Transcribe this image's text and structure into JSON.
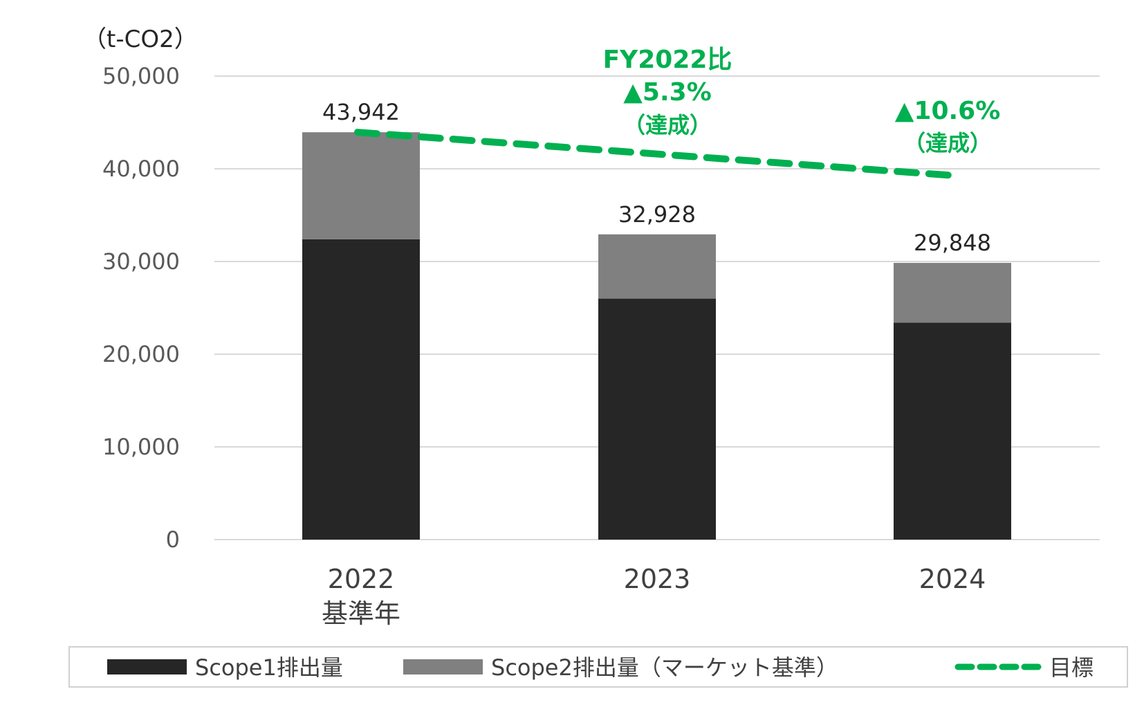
{
  "chart_data": {
    "type": "bar",
    "stacked": true,
    "unit_label": "（t-CO2）",
    "categories": [
      "2022",
      "2023",
      "2024"
    ],
    "category_sublabels": [
      "基準年",
      "",
      ""
    ],
    "series": [
      {
        "name": "Scope1排出量",
        "values": [
          32400,
          26000,
          23400
        ],
        "color": "#262626"
      },
      {
        "name": "Scope2排出量（マーケット基準）",
        "values": [
          11542,
          6928,
          6448
        ],
        "color": "#808080"
      }
    ],
    "totals": [
      43942,
      32928,
      29848
    ],
    "total_labels": [
      "43,942",
      "32,928",
      "29,848"
    ],
    "target": {
      "name": "目標",
      "values": [
        43942,
        null,
        39283
      ],
      "color": "#00B050",
      "style": "dashed"
    },
    "ylim": [
      0,
      50000
    ],
    "yticks": [
      0,
      10000,
      20000,
      30000,
      40000,
      50000
    ],
    "ytick_labels": [
      "0",
      "10,000",
      "20,000",
      "30,000",
      "40,000",
      "50,000"
    ],
    "grid": true,
    "legend_position": "bottom",
    "annotations": [
      {
        "lines": [
          "FY2022比",
          "▲5.3%",
          "（達成）"
        ],
        "category": "2023"
      },
      {
        "lines": [
          "▲10.6%",
          "（達成）"
        ],
        "category": "2024"
      }
    ]
  }
}
